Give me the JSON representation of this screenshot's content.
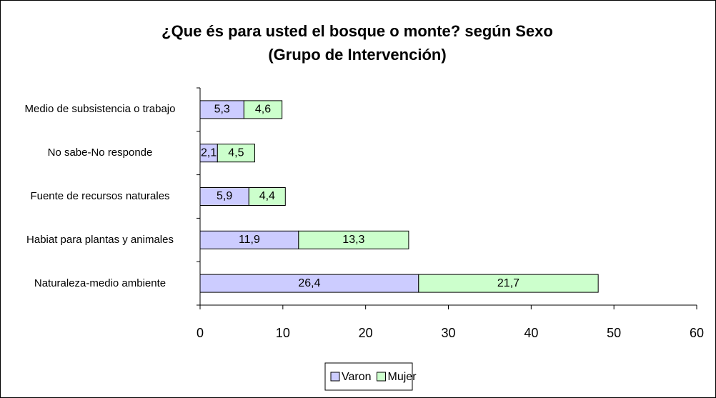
{
  "chart_data": {
    "type": "stacked-bar-horizontal",
    "title": "¿Que és para usted el bosque o monte? según Sexo",
    "subtitle": "(Grupo de Intervención)",
    "categories": [
      "Medio de subsistencia o trabajo",
      "No sabe-No responde",
      "Fuente de recursos naturales",
      "Habiat para plantas y animales",
      "Naturaleza-medio ambiente"
    ],
    "series": [
      {
        "name": "Varon",
        "color": "#ccccff",
        "values": [
          5.3,
          2.1,
          5.9,
          11.9,
          26.4
        ],
        "value_labels": [
          "5,3",
          "2,1",
          "5,9",
          "11,9",
          "26,4"
        ]
      },
      {
        "name": "Mujer",
        "color": "#ccffcc",
        "values": [
          4.6,
          4.5,
          4.4,
          13.3,
          21.7
        ],
        "value_labels": [
          "4,6",
          "4,5",
          "4,4",
          "13,3",
          "21,7"
        ]
      }
    ],
    "xlim": [
      0,
      60
    ],
    "xticks": [
      0,
      10,
      20,
      30,
      40,
      50,
      60
    ],
    "legend": "bottom"
  }
}
